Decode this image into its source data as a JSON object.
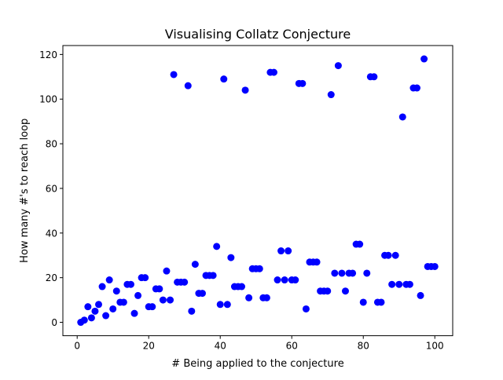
{
  "chart_data": {
    "type": "scatter",
    "title": "Visualising Collatz Conjecture",
    "xlabel": "# Being applied to the conjecture",
    "ylabel": "How many #'s to reach loop",
    "xlim": [
      -4,
      105
    ],
    "ylim": [
      -6,
      124
    ],
    "xticks": [
      0,
      20,
      40,
      60,
      80,
      100
    ],
    "yticks": [
      0,
      20,
      40,
      60,
      80,
      100,
      120
    ],
    "grid": false,
    "marker_color": "#0000ff",
    "x": [
      1,
      2,
      3,
      4,
      5,
      6,
      7,
      8,
      9,
      10,
      11,
      12,
      13,
      14,
      15,
      16,
      17,
      18,
      19,
      20,
      21,
      22,
      23,
      24,
      25,
      26,
      27,
      28,
      29,
      30,
      31,
      32,
      33,
      34,
      35,
      36,
      37,
      38,
      39,
      40,
      41,
      42,
      43,
      44,
      45,
      46,
      47,
      48,
      49,
      50,
      51,
      52,
      53,
      54,
      55,
      56,
      57,
      58,
      59,
      60,
      61,
      62,
      63,
      64,
      65,
      66,
      67,
      68,
      69,
      70,
      71,
      72,
      73,
      74,
      75,
      76,
      77,
      78,
      79,
      80,
      81,
      82,
      83,
      84,
      85,
      86,
      87,
      88,
      89,
      90,
      91,
      92,
      93,
      94,
      95,
      96,
      97,
      98,
      99,
      100
    ],
    "y": [
      0,
      1,
      7,
      2,
      5,
      8,
      16,
      3,
      19,
      6,
      14,
      9,
      9,
      17,
      17,
      4,
      12,
      20,
      20,
      7,
      7,
      15,
      15,
      10,
      23,
      10,
      111,
      18,
      18,
      18,
      106,
      5,
      26,
      13,
      13,
      21,
      21,
      21,
      34,
      8,
      109,
      8,
      29,
      16,
      16,
      16,
      104,
      11,
      24,
      24,
      24,
      11,
      11,
      112,
      112,
      19,
      32,
      19,
      32,
      19,
      19,
      107,
      107,
      6,
      27,
      27,
      27,
      14,
      14,
      14,
      102,
      22,
      115,
      22,
      14,
      22,
      22,
      35,
      35,
      9,
      22,
      110,
      110,
      9,
      9,
      30,
      30,
      17,
      30,
      17,
      92,
      17,
      17,
      105,
      105,
      12,
      118,
      25,
      25,
      25
    ]
  }
}
